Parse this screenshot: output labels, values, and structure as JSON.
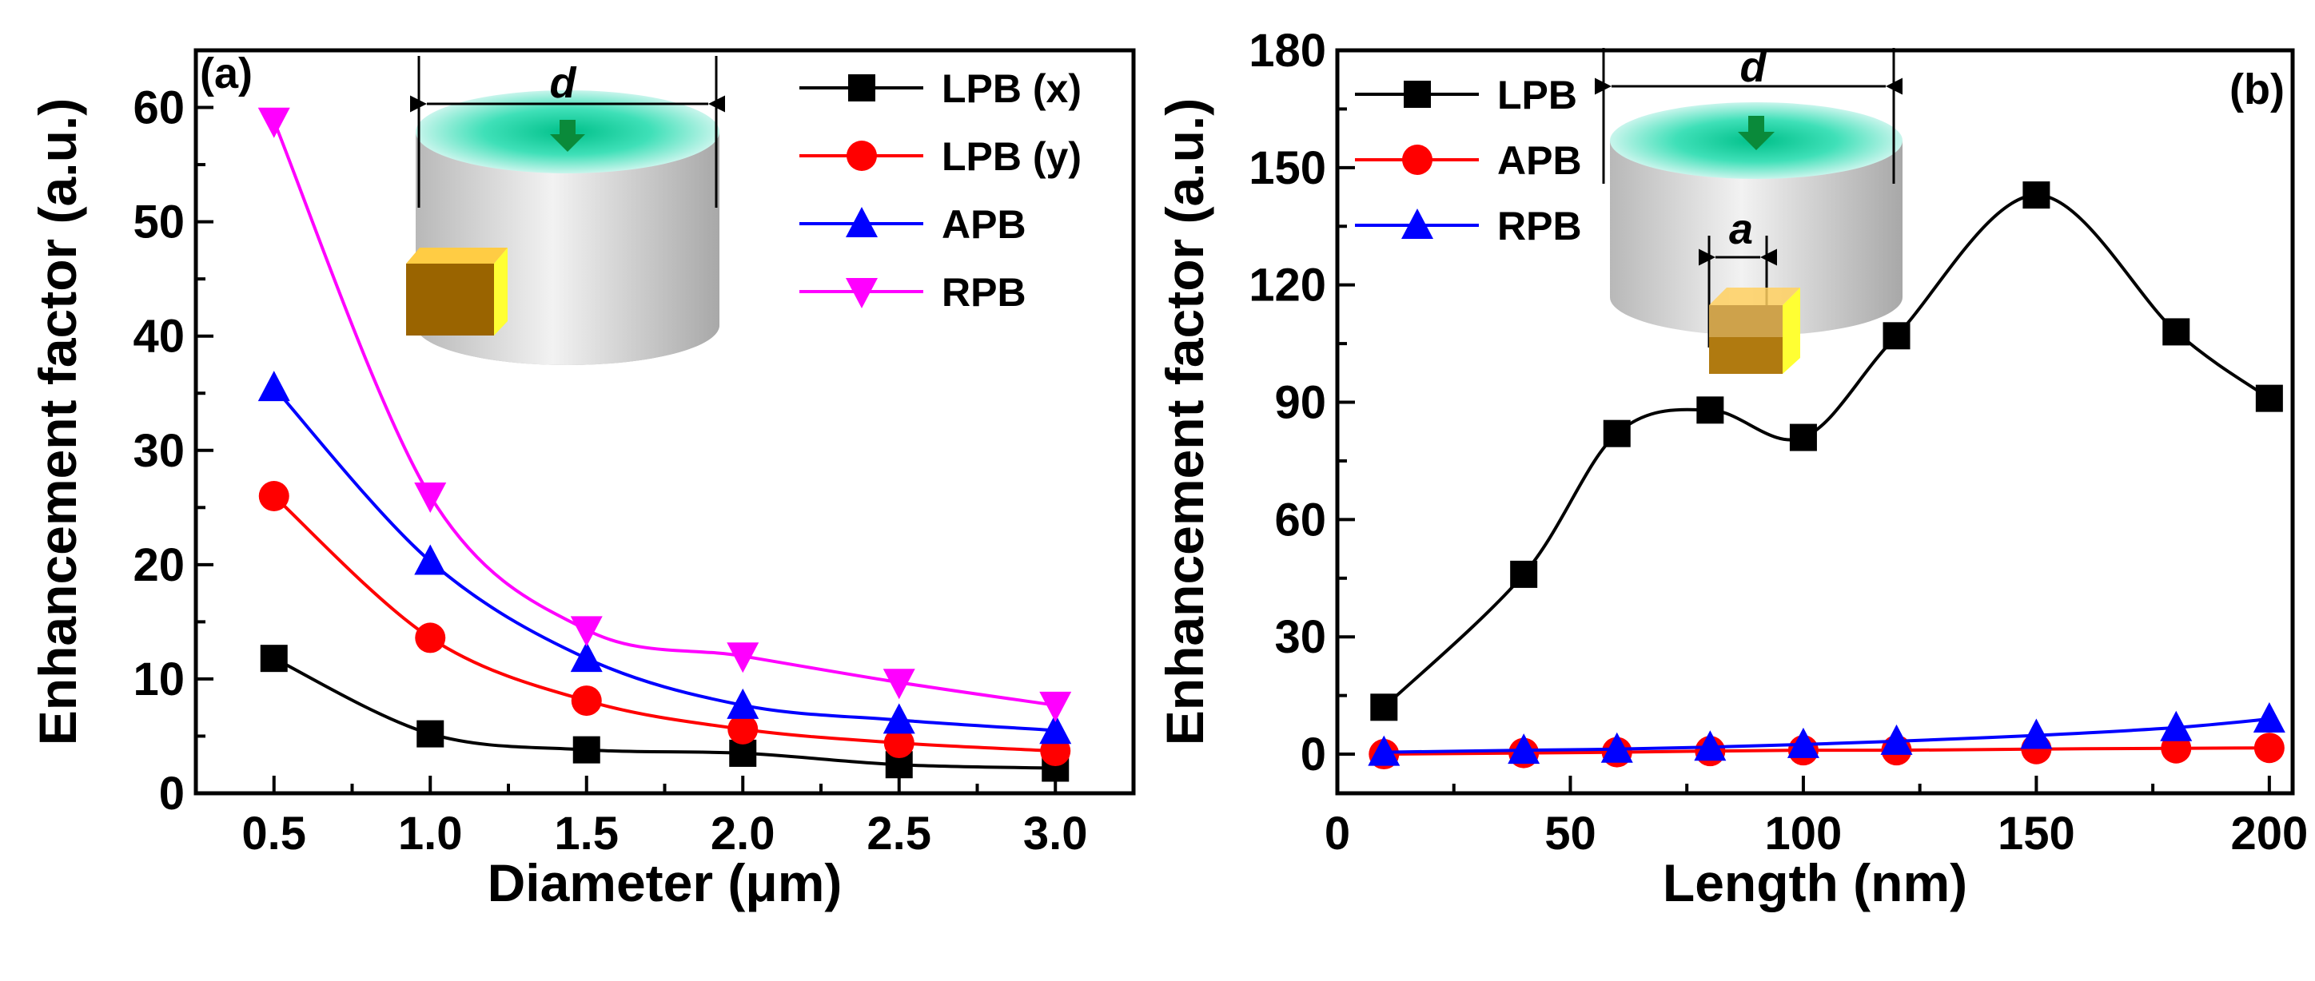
{
  "chart_data": [
    {
      "type": "line",
      "panel_label": "(a)",
      "xlabel": "Diameter (μm)",
      "ylabel": "Enhancement factor (a.u.)",
      "xlim": [
        0.25,
        3.25
      ],
      "ylim": [
        0,
        65
      ],
      "xticks": [
        0.5,
        1.0,
        1.5,
        2.0,
        2.5,
        3.0
      ],
      "xtick_labels": [
        "0.5",
        "1.0",
        "1.5",
        "2.0",
        "2.5",
        "3.0"
      ],
      "yticks": [
        0,
        10,
        20,
        30,
        40,
        50,
        60
      ],
      "ytick_labels": [
        "0",
        "10",
        "20",
        "30",
        "40",
        "50",
        "60"
      ],
      "x": [
        0.5,
        1.0,
        1.5,
        2.0,
        2.5,
        3.0
      ],
      "series": [
        {
          "name": "LPB (x)",
          "color": "#000000",
          "marker": "square",
          "values": [
            11.8,
            5.2,
            3.8,
            3.5,
            2.5,
            2.2
          ]
        },
        {
          "name": "LPB (y)",
          "color": "#ff0000",
          "marker": "circle",
          "values": [
            26.0,
            13.6,
            8.1,
            5.6,
            4.4,
            3.7
          ]
        },
        {
          "name": "APB",
          "color": "#0000ff",
          "marker": "triangle-up",
          "values": [
            35.5,
            20.3,
            11.8,
            7.7,
            6.4,
            5.5
          ]
        },
        {
          "name": "RPB",
          "color": "#ff00ff",
          "marker": "triangle-down",
          "values": [
            58.8,
            26.0,
            14.3,
            12.0,
            9.7,
            7.7
          ]
        }
      ],
      "legend": "top-right",
      "grid": false,
      "inset_label": "d"
    },
    {
      "type": "line",
      "panel_label": "(b)",
      "xlabel": "Length (nm)",
      "ylabel": "Enhancement factor (a.u.)",
      "xlim": [
        0,
        205
      ],
      "ylim": [
        -10,
        180
      ],
      "xticks": [
        0,
        50,
        100,
        150,
        200
      ],
      "xtick_labels": [
        "0",
        "50",
        "100",
        "150",
        "200"
      ],
      "yticks": [
        0,
        30,
        60,
        90,
        120,
        150,
        180
      ],
      "ytick_labels": [
        "0",
        "30",
        "60",
        "90",
        "120",
        "150",
        "180"
      ],
      "x": [
        10,
        40,
        60,
        80,
        100,
        120,
        150,
        180,
        200
      ],
      "series": [
        {
          "name": "LPB",
          "color": "#000000",
          "marker": "square",
          "values": [
            12,
            46,
            82,
            88,
            81,
            107,
            143,
            108,
            91
          ]
        },
        {
          "name": "APB",
          "color": "#ff0000",
          "marker": "circle",
          "values": [
            0,
            0.3,
            0.5,
            0.8,
            1.0,
            1.0,
            1.3,
            1.5,
            1.6
          ]
        },
        {
          "name": "RPB",
          "color": "#0000ff",
          "marker": "triangle-up",
          "values": [
            0.5,
            1.0,
            1.3,
            1.8,
            2.5,
            3.3,
            4.8,
            6.8,
            9.0
          ]
        }
      ],
      "legend": "top-left",
      "grid": false,
      "inset_labels": [
        "d",
        "a"
      ]
    }
  ]
}
